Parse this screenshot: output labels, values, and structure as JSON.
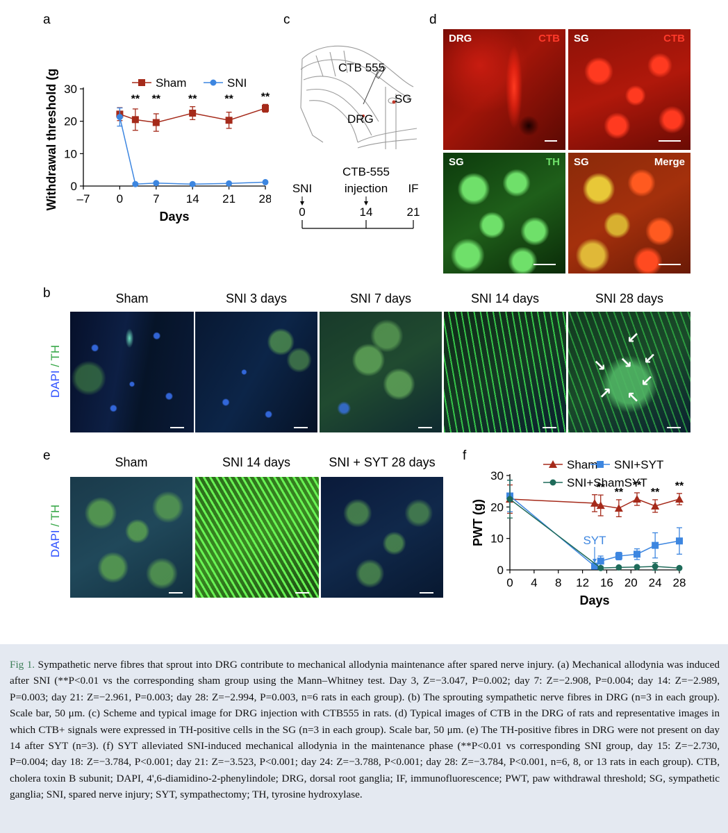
{
  "panel_letters": {
    "a": "a",
    "b": "b",
    "c": "c",
    "d": "d",
    "e": "e",
    "f": "f"
  },
  "chart_data": [
    {
      "panel": "a",
      "type": "line",
      "xlabel": "Days",
      "ylabel": "Withdrawal threshold (g)",
      "xticks": [
        "–7",
        "0",
        "7",
        "14",
        "21",
        "28"
      ],
      "yticks": [
        "0",
        "10",
        "20",
        "30"
      ],
      "xlim": [
        -7,
        28
      ],
      "ylim": [
        0,
        30
      ],
      "legend_placement": "top-left",
      "significance": {
        "days": [
          3,
          7,
          14,
          21,
          28
        ],
        "label": "**"
      },
      "series": [
        {
          "name": "Sham",
          "color": "#a52a1a",
          "marker": "square",
          "x": [
            0,
            3,
            7,
            14,
            21,
            28
          ],
          "y": [
            22.2,
            20.5,
            19.6,
            22.5,
            20.3,
            24.0
          ],
          "err": [
            2.0,
            3.3,
            2.7,
            2.0,
            2.5,
            1.2
          ]
        },
        {
          "name": "SNI",
          "color": "#3d86e0",
          "marker": "circle",
          "x": [
            0,
            3,
            7,
            14,
            21,
            28
          ],
          "y": [
            21.3,
            0.6,
            0.9,
            0.6,
            0.8,
            1.2
          ],
          "err": [
            2.8,
            0.2,
            0.2,
            0.2,
            0.2,
            0.2
          ]
        }
      ]
    },
    {
      "panel": "f",
      "type": "line",
      "xlabel": "Days",
      "ylabel": "PWT (g)",
      "xticks": [
        "0",
        "4",
        "8",
        "12",
        "16",
        "20",
        "24",
        "28"
      ],
      "yticks": [
        "0",
        "10",
        "20",
        "30"
      ],
      "xlim": [
        0,
        28
      ],
      "ylim": [
        0,
        30
      ],
      "legend_placement": "top",
      "annotation": "SYT",
      "significance": {
        "days": [
          15,
          18,
          21,
          24,
          28
        ],
        "label": "**"
      },
      "series": [
        {
          "name": "Sham",
          "color": "#a52a1a",
          "marker": "triangle",
          "x": [
            0,
            14,
            15,
            18,
            21,
            24,
            28
          ],
          "y": [
            22.5,
            21.2,
            20.5,
            19.6,
            22.5,
            20.3,
            22.5
          ],
          "err": [
            4.5,
            2.7,
            3.3,
            2.7,
            2.0,
            2.0,
            1.8
          ]
        },
        {
          "name": "SNI+SYT",
          "color": "#3d86e0",
          "marker": "square",
          "x": [
            0,
            14,
            15,
            18,
            21,
            24,
            28
          ],
          "y": [
            23.5,
            1.2,
            2.8,
            4.4,
            5.0,
            7.8,
            9.2
          ],
          "err": [
            5.0,
            0.5,
            1.6,
            1.2,
            1.7,
            4.0,
            4.2
          ]
        },
        {
          "name": "SNI+ShamSYT",
          "color": "#1f6b5a",
          "marker": "circle",
          "x": [
            0,
            15,
            18,
            21,
            24,
            28
          ],
          "y": [
            22.5,
            0.6,
            0.8,
            0.9,
            1.1,
            0.6
          ],
          "err": [
            6.0,
            0.3,
            0.3,
            0.3,
            1.2,
            0.3
          ]
        }
      ]
    }
  ],
  "panel_c": {
    "labels": {
      "ctb": "CTB 555",
      "sg": "SG",
      "drg": "DRG"
    },
    "timeline": {
      "events": [
        {
          "top": "SNI",
          "day": "0"
        },
        {
          "top": "CTB-555",
          "top2": "injection",
          "day": "14"
        },
        {
          "top": "IF",
          "day": "21"
        }
      ]
    }
  },
  "panel_b": {
    "side_label": {
      "dapi": "DAPI",
      "sep": " / ",
      "th": "TH"
    },
    "columns": [
      "Sham",
      "SNI 3 days",
      "SNI 7 days",
      "SNI 14 days",
      "SNI 28 days"
    ]
  },
  "panel_d": {
    "images": [
      {
        "left": "DRG",
        "right": "CTB"
      },
      {
        "left": "SG",
        "right": "CTB"
      },
      {
        "left": "SG",
        "right": "TH"
      },
      {
        "left": "SG",
        "right": "Merge"
      }
    ]
  },
  "panel_e": {
    "side_label": {
      "dapi": "DAPI",
      "sep": " / ",
      "th": "TH"
    },
    "columns": [
      "Sham",
      "SNI 14 days",
      "SNI + SYT 28 days"
    ]
  },
  "colors": {
    "red": "#a52a1a",
    "blue": "#3d86e0",
    "teal": "#1f6b5a",
    "caption_label": "#3e7f58",
    "caption_bg": "#e4e9f1"
  },
  "caption": {
    "label": "Fig 1.",
    "text": " Sympathetic nerve fibres that sprout into DRG contribute to mechanical allodynia maintenance after spared nerve injury. (a) Mechanical allodynia was induced after SNI (**P<0.01 vs the corresponding sham group using the Mann–Whitney test. Day 3, Z=−3.047, P=0.002; day 7: Z=−2.908, P=0.004; day 14: Z=−2.989, P=0.003; day 21: Z=−2.961, P=0.003; day 28: Z=−2.994, P=0.003, n=6 rats in each group). (b) The sprouting sympathetic nerve fibres in DRG (n=3 in each group). Scale bar, 50 μm. (c) Scheme and typical image for DRG injection with CTB555 in rats. (d) Typical images of CTB in the DRG of rats and representative images in which CTB+ signals were expressed in TH-positive cells in the SG (n=3 in each group). Scale bar, 50 μm. (e) The TH-positive fibres in DRG were not present on day 14 after SYT (n=3). (f) SYT alleviated SNI-induced mechanical allodynia in the maintenance phase (**P<0.01 vs corresponding SNI group, day 15: Z=−2.730, P=0.004; day 18: Z=−3.784, P<0.001; day 21: Z=−3.523, P<0.001; day 24: Z=−3.788, P<0.001; day 28: Z=−3.784, P<0.001, n=6, 8, or 13 rats in each group). CTB, cholera toxin B subunit; DAPI, 4',6-diamidino-2-phenylindole; DRG, dorsal root ganglia; IF, immunofluorescence; PWT, paw withdrawal threshold; SG, sympathetic ganglia; SNI, spared nerve injury; SYT, sympathectomy; TH, tyrosine hydroxylase."
  }
}
